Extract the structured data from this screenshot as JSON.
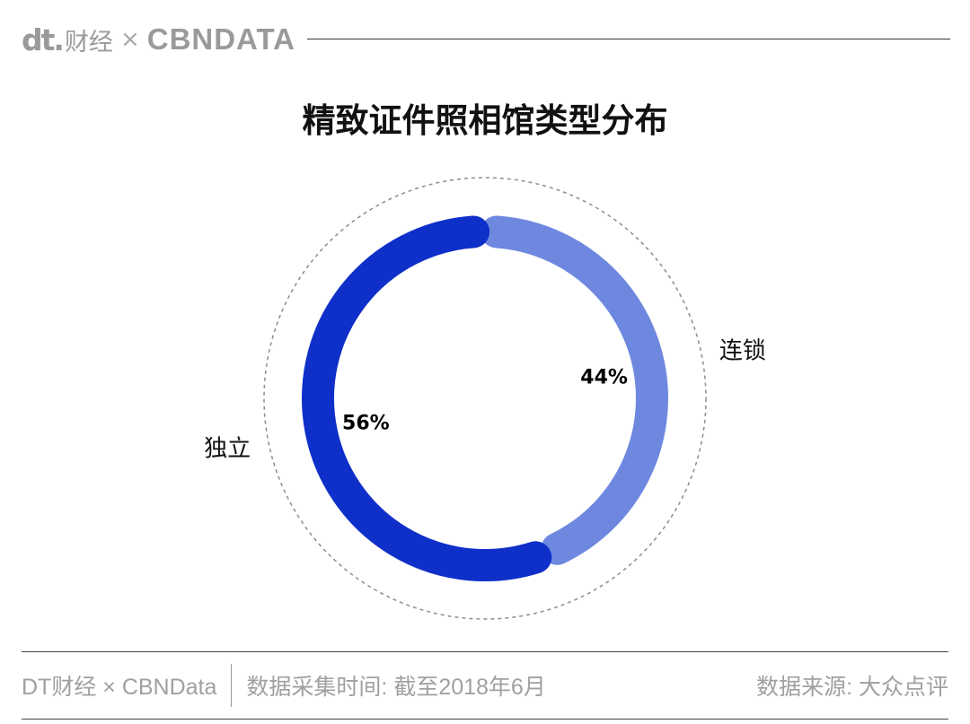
{
  "header": {
    "brand_dt": "dt.",
    "brand_cn": "财经",
    "brand_x": "×",
    "brand_cbn": "CBNDATA"
  },
  "title": "精致证件照相馆类型分布",
  "chart_data": {
    "type": "pie",
    "title": "精致证件照相馆类型分布",
    "style": "donut",
    "categories": [
      "连锁",
      "独立"
    ],
    "values": [
      44,
      56
    ],
    "value_labels": [
      "44%",
      "56%"
    ],
    "colors": [
      "#6e88e0",
      "#0f2fc9"
    ],
    "start": "top, clockwise"
  },
  "footer": {
    "left_credit": "DT财经 × CBNData",
    "left_date": "数据采集时间: 截至2018年6月",
    "right_source": "数据来源: 大众点评"
  }
}
